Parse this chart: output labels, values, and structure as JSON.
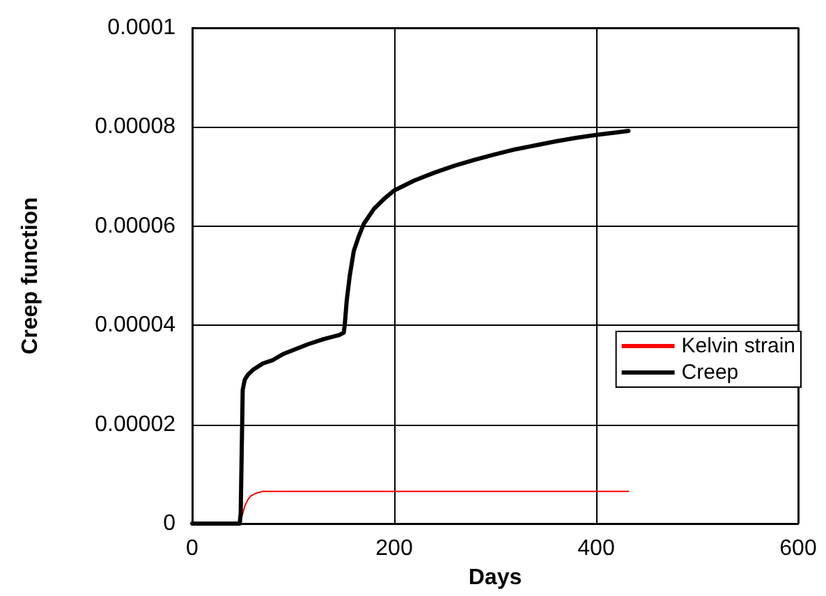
{
  "chart_data": {
    "type": "line",
    "xlabel": "Days",
    "ylabel": "Creep function",
    "xlim": [
      0,
      600
    ],
    "xticks": [
      0,
      200,
      400,
      600
    ],
    "ylim": [
      0,
      0.0001
    ],
    "yticks": [
      0,
      {
        "value": 2e-05,
        "label": "0.00002"
      },
      {
        "value": 4e-05,
        "label": "0.00004"
      },
      {
        "value": 6e-05,
        "label": "0.00006"
      },
      {
        "value": 8e-05,
        "label": "0.00008"
      },
      0.0001
    ],
    "grid": true,
    "legend": "right",
    "marker": "none",
    "series": [
      {
        "name": "Kelvin strain",
        "color": "#ff0000",
        "x": [
          0,
          47,
          50,
          52,
          55,
          58,
          62,
          66,
          70,
          100,
          200,
          300,
          400,
          432
        ],
        "values": [
          0,
          0,
          2e-06,
          3.5e-06,
          4.8e-06,
          5.6e-06,
          6e-06,
          6.3e-06,
          6.5e-06,
          6.5e-06,
          6.5e-06,
          6.5e-06,
          6.5e-06,
          6.5e-06
        ]
      },
      {
        "name": "Creep",
        "color": "#000000",
        "x": [
          0,
          47,
          48,
          50,
          52,
          55,
          60,
          70,
          80,
          90,
          100,
          115,
          130,
          145,
          150,
          151,
          153,
          156,
          160,
          165,
          170,
          180,
          190,
          200,
          220,
          240,
          260,
          280,
          300,
          320,
          340,
          360,
          380,
          400,
          420,
          432
        ],
        "values": [
          0,
          0,
          2e-06,
          2.7e-05,
          2.9e-05,
          3e-05,
          3.1e-05,
          3.23e-05,
          3.3e-05,
          3.42e-05,
          3.5e-05,
          3.62e-05,
          3.72e-05,
          3.8e-05,
          3.85e-05,
          4e-05,
          4.5e-05,
          5e-05,
          5.5e-05,
          5.8e-05,
          6.05e-05,
          6.35e-05,
          6.55e-05,
          6.72e-05,
          6.92e-05,
          7.08e-05,
          7.22e-05,
          7.34e-05,
          7.45e-05,
          7.55e-05,
          7.63e-05,
          7.71e-05,
          7.78e-05,
          7.84e-05,
          7.89e-05,
          7.92e-05
        ]
      }
    ]
  }
}
